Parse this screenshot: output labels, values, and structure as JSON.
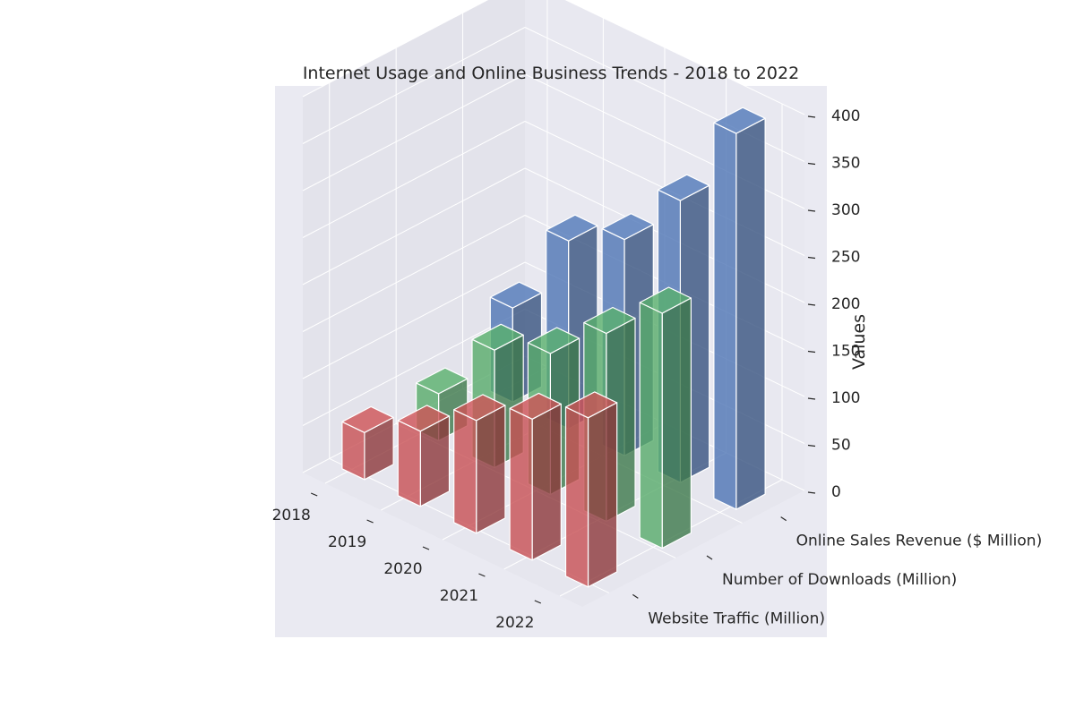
{
  "chart_data": {
    "type": "bar",
    "title": "Internet Usage and Online Business Trends - 2018 to 2022",
    "categories": [
      "2018",
      "2019",
      "2020",
      "2021",
      "2022"
    ],
    "series": [
      {
        "name": "Website Traffic (Million)",
        "values": [
          50,
          80,
          120,
          150,
          180
        ],
        "color": "#c44e52"
      },
      {
        "name": "Number of Downloads (Million)",
        "values": [
          50,
          125,
          150,
          200,
          250
        ],
        "color": "#55a868"
      },
      {
        "name": "Online Sales Revenue ($ Million)",
        "values": [
          100,
          200,
          230,
          300,
          400
        ],
        "color": "#4c72b0"
      }
    ],
    "zlabel": "Values",
    "zticks": [
      "0",
      "50",
      "100",
      "150",
      "200",
      "250",
      "300",
      "350",
      "400"
    ],
    "ylim": [
      0,
      400
    ],
    "grid": true,
    "background": "#eaeaf2"
  }
}
